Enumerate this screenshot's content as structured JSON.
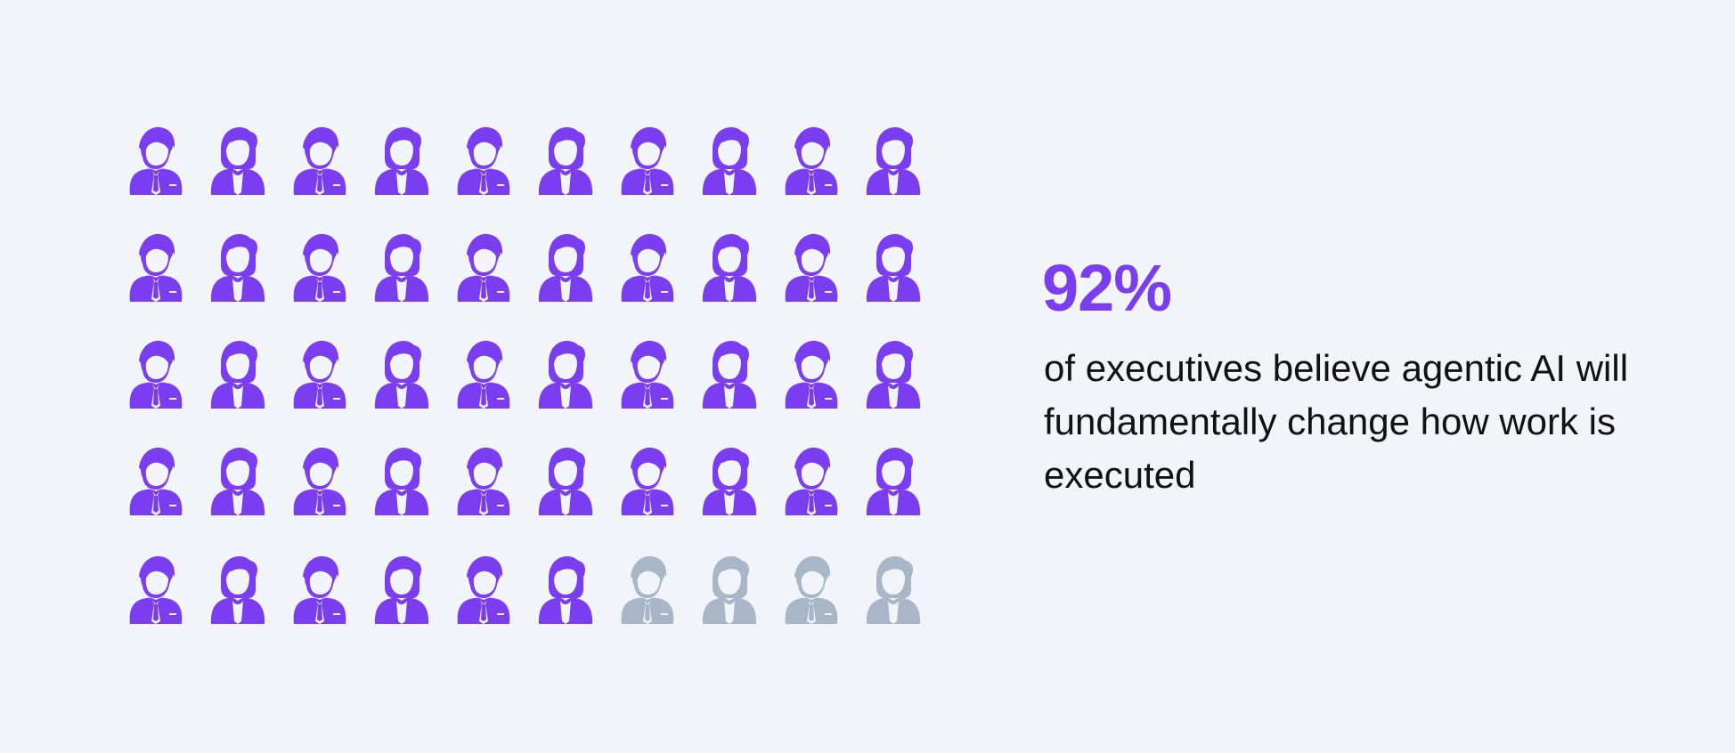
{
  "chart_data": {
    "type": "pictograph",
    "total_icons": 50,
    "highlighted_icons": 46,
    "percent": 92,
    "rows": 5,
    "columns": 10,
    "icon_pattern": [
      "male-executive-icon",
      "female-executive-icon"
    ],
    "colors": {
      "highlighted": "#7a3df0",
      "muted": "#a9b6c8",
      "background": "#f1f4f8"
    },
    "stat_value": "92%",
    "caption": "of executives believe agentic AI will fundamentally change how work is executed"
  }
}
